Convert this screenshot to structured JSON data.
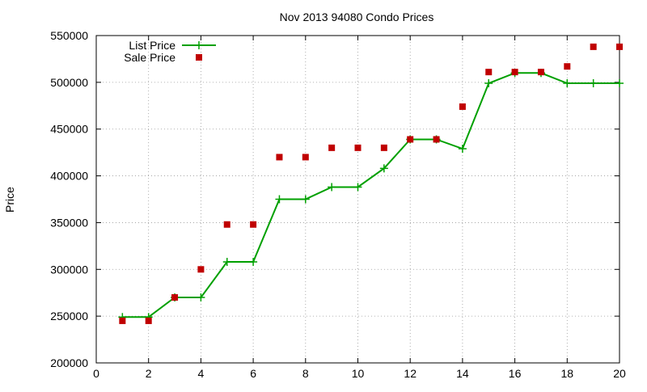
{
  "chart_data": {
    "type": "line",
    "title": "Nov 2013 94080 Condo Prices",
    "xlabel": "",
    "ylabel": "Price",
    "xlim": [
      0,
      20
    ],
    "ylim": [
      200000,
      550000
    ],
    "xticks": [
      0,
      2,
      4,
      6,
      8,
      10,
      12,
      14,
      16,
      18,
      20
    ],
    "yticks": [
      200000,
      250000,
      300000,
      350000,
      400000,
      450000,
      500000,
      550000
    ],
    "grid": true,
    "legend_position": "top-left",
    "series": [
      {
        "name": "List Price",
        "style": "line+cross",
        "color": "#00a000",
        "x": [
          1,
          2,
          3,
          4,
          5,
          6,
          7,
          8,
          9,
          10,
          11,
          12,
          13,
          14,
          15,
          16,
          17,
          18,
          19,
          20
        ],
        "values": [
          249000,
          249000,
          270000,
          270000,
          308000,
          308000,
          375000,
          375000,
          388000,
          388000,
          408000,
          439000,
          439000,
          429000,
          499000,
          510000,
          510000,
          499000,
          499000,
          499000
        ]
      },
      {
        "name": "Sale Price",
        "style": "square",
        "color": "#c00000",
        "x": [
          1,
          2,
          3,
          4,
          5,
          6,
          7,
          8,
          9,
          10,
          11,
          12,
          13,
          14,
          15,
          16,
          17,
          18,
          19,
          20
        ],
        "values": [
          245000,
          245000,
          270000,
          300000,
          348000,
          348000,
          420000,
          420000,
          430000,
          430000,
          430000,
          439000,
          439000,
          474000,
          511000,
          511000,
          511000,
          517000,
          538000,
          538000
        ]
      }
    ]
  }
}
